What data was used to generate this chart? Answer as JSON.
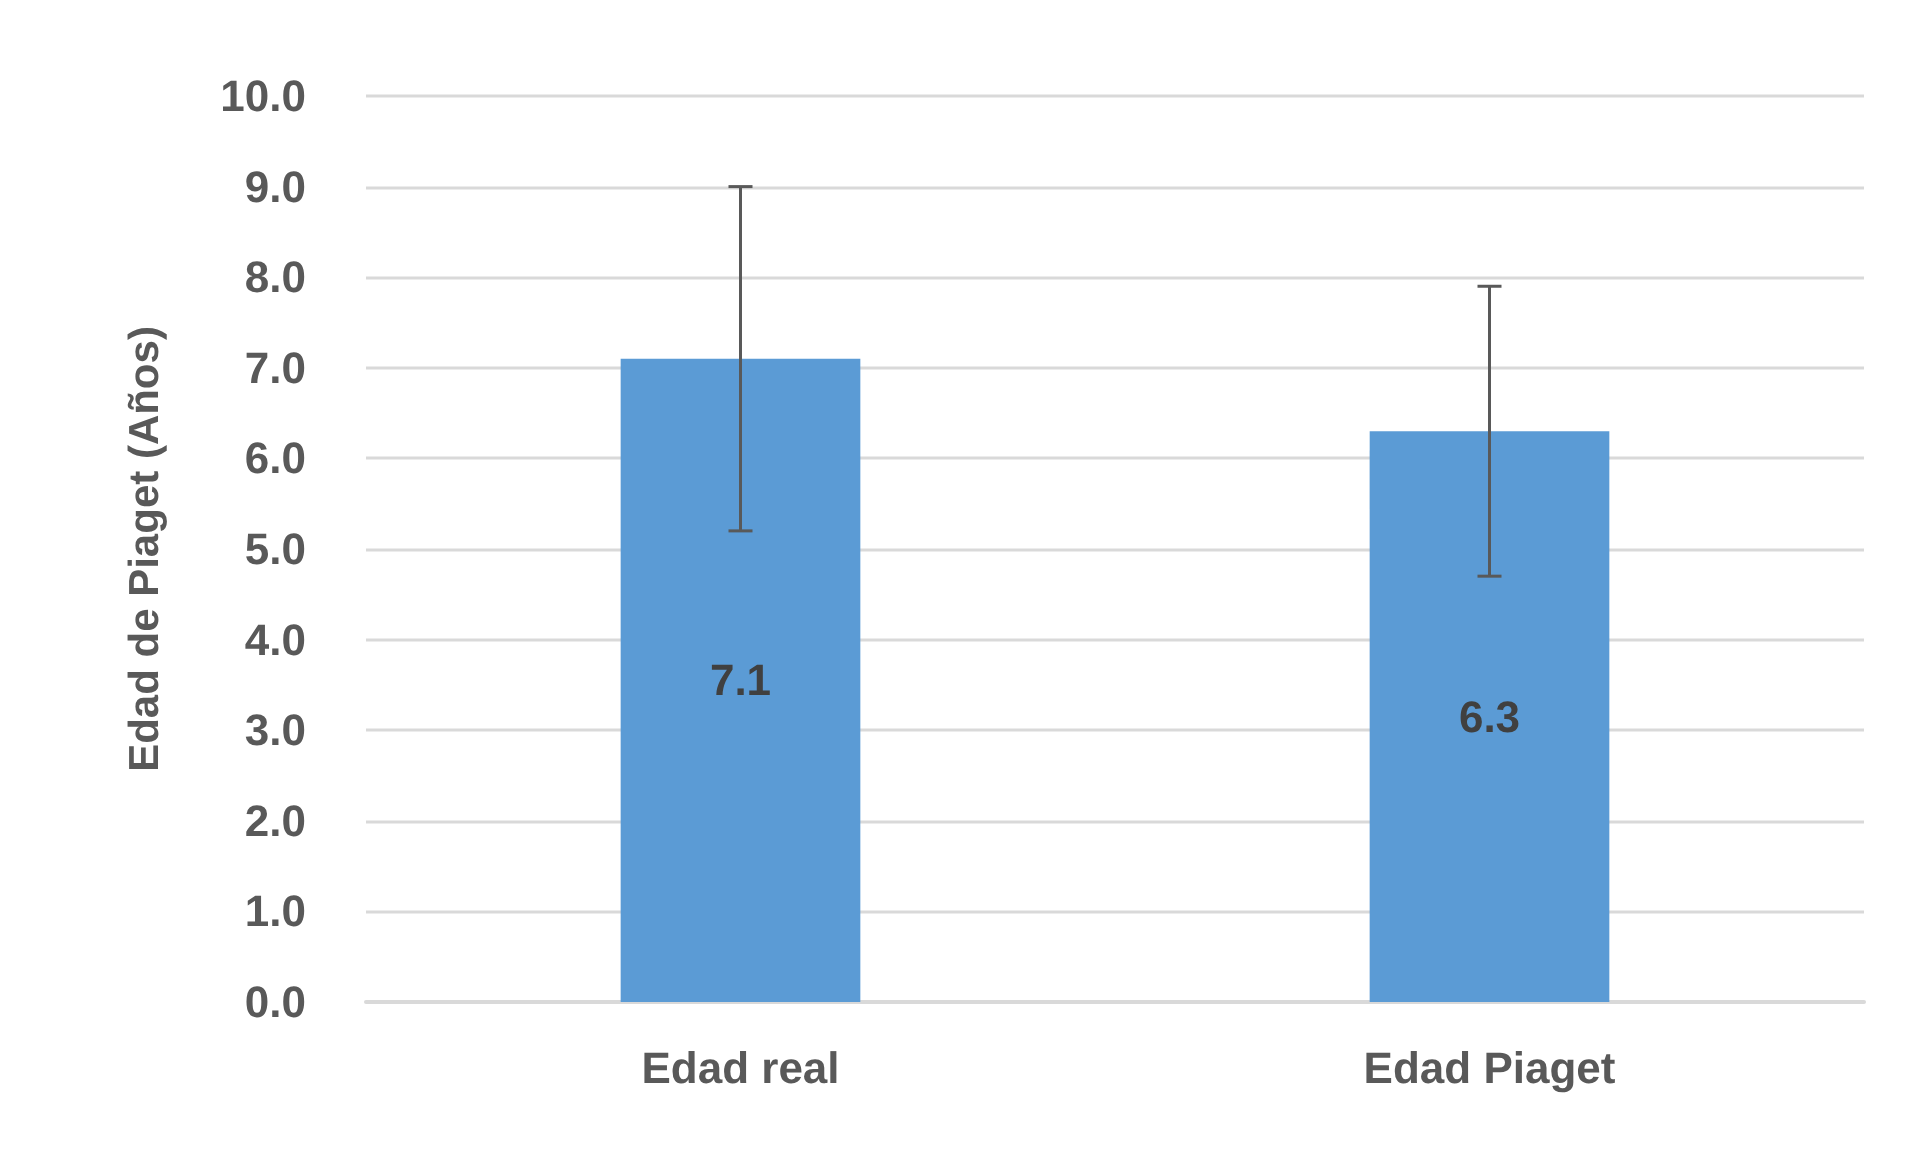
{
  "chart_data": {
    "type": "bar",
    "ylabel": "Edad de Piaget (Años)",
    "categories": [
      "Edad real",
      "Edad Piaget"
    ],
    "values": [
      7.1,
      6.3
    ],
    "errors": [
      1.9,
      1.6
    ],
    "color": "#5b9bd5",
    "ylim": [
      0,
      10
    ],
    "yticks": [
      {
        "value": 0,
        "label": "0.0"
      },
      {
        "value": 1,
        "label": "1.0"
      },
      {
        "value": 2,
        "label": "2.0"
      },
      {
        "value": 3,
        "label": "3.0"
      },
      {
        "value": 4,
        "label": "4.0"
      },
      {
        "value": 5,
        "label": "5.0"
      },
      {
        "value": 6,
        "label": "6.0"
      },
      {
        "value": 7,
        "label": "7.0"
      },
      {
        "value": 8,
        "label": "8.0"
      },
      {
        "value": 9,
        "label": "9.0"
      },
      {
        "value": 10,
        "label": "10.0"
      }
    ],
    "grid": "y",
    "data_labels": true
  }
}
